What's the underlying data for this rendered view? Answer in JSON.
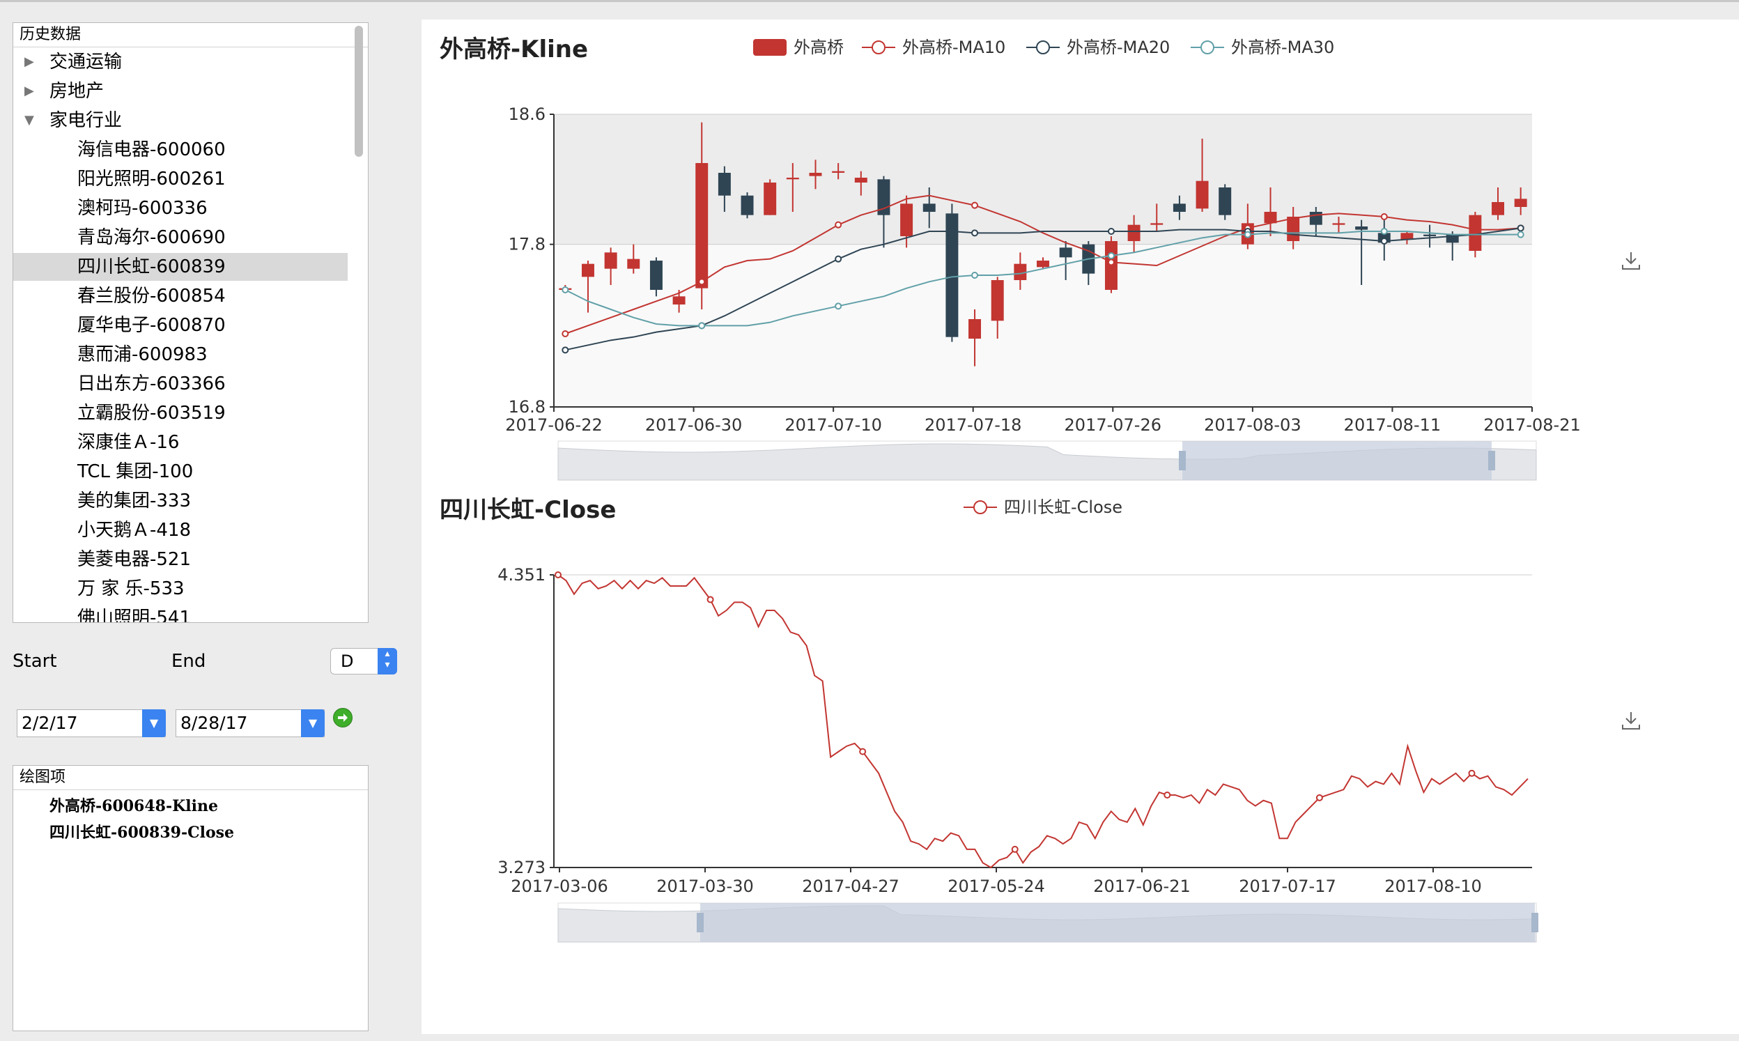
{
  "sidebar": {
    "tree_header": "历史数据",
    "categories": [
      {
        "label": "交通运输",
        "expanded": false
      },
      {
        "label": "房地产",
        "expanded": false
      },
      {
        "label": "家电行业",
        "expanded": true
      }
    ],
    "stocks": [
      {
        "label": "海信电器-600060"
      },
      {
        "label": "阳光照明-600261"
      },
      {
        "label": "澳柯玛-600336"
      },
      {
        "label": "青岛海尔-600690"
      },
      {
        "label": "四川长虹-600839",
        "selected": true
      },
      {
        "label": "春兰股份-600854"
      },
      {
        "label": "厦华电子-600870"
      },
      {
        "label": "惠而浦-600983"
      },
      {
        "label": "日出东方-603366"
      },
      {
        "label": "立霸股份-603519"
      },
      {
        "label": "深康佳Ａ-16"
      },
      {
        "label": "TCL 集团-100"
      },
      {
        "label": "美的集团-333"
      },
      {
        "label": "小天鹅Ａ-418"
      },
      {
        "label": "美菱电器-521"
      },
      {
        "label": "万 家 乐-533"
      },
      {
        "label": "佛山照明-541"
      }
    ],
    "start_label": "Start",
    "end_label": "End",
    "period_select": "D",
    "start_date": "2/2/17",
    "end_date": "8/28/17",
    "plots_header": "绘图项",
    "plot_items": [
      "外高桥-600648-Kline",
      "四川长虹-600839-Close"
    ]
  },
  "colors": {
    "up": "#c23531",
    "down": "#2f4554",
    "ma10": "#c23531",
    "ma20": "#2f4554",
    "ma30": "#61a0a8",
    "close": "#c23531"
  },
  "chart_data": [
    {
      "type": "candlestick",
      "title": "外高桥-Kline",
      "legend": [
        "外高桥",
        "外高桥-MA10",
        "外高桥-MA20",
        "外高桥-MA30"
      ],
      "ylim": [
        16.8,
        18.6
      ],
      "yticks": [
        "18.6",
        "17.8",
        "16.8"
      ],
      "xticks": [
        "2017-06-22",
        "2017-06-30",
        "2017-07-10",
        "2017-07-18",
        "2017-07-26",
        "2017-08-03",
        "2017-08-11",
        "2017-08-21"
      ],
      "candles": [
        [
          17.52,
          17.53,
          17.55,
          17.5
        ],
        [
          17.6,
          17.68,
          17.7,
          17.38
        ],
        [
          17.65,
          17.75,
          17.78,
          17.55
        ],
        [
          17.65,
          17.71,
          17.8,
          17.62
        ],
        [
          17.7,
          17.52,
          17.72,
          17.48
        ],
        [
          17.43,
          17.48,
          17.52,
          17.38
        ],
        [
          17.53,
          18.3,
          18.55,
          17.4
        ],
        [
          18.24,
          18.1,
          18.28,
          18.0
        ],
        [
          18.1,
          17.98,
          18.12,
          17.96
        ],
        [
          17.98,
          18.18,
          18.2,
          17.98
        ],
        [
          18.2,
          18.21,
          18.3,
          18.0
        ],
        [
          18.22,
          18.24,
          18.32,
          18.14
        ],
        [
          18.24,
          18.25,
          18.3,
          18.2
        ],
        [
          18.18,
          18.21,
          18.25,
          18.1
        ],
        [
          18.2,
          17.98,
          18.22,
          17.78
        ],
        [
          17.85,
          18.05,
          18.1,
          17.78
        ],
        [
          18.05,
          18.0,
          18.15,
          17.9
        ],
        [
          17.99,
          17.23,
          18.05,
          17.2
        ],
        [
          17.22,
          17.34,
          17.4,
          17.05
        ],
        [
          17.33,
          17.58,
          17.6,
          17.22
        ],
        [
          17.58,
          17.68,
          17.75,
          17.52
        ],
        [
          17.66,
          17.7,
          17.72,
          17.65
        ],
        [
          17.78,
          17.72,
          17.82,
          17.58
        ],
        [
          17.8,
          17.62,
          17.82,
          17.55
        ],
        [
          17.52,
          17.82,
          17.85,
          17.5
        ],
        [
          17.82,
          17.92,
          17.98,
          17.75
        ],
        [
          17.92,
          17.93,
          18.05,
          17.88
        ],
        [
          18.05,
          18.0,
          18.1,
          17.95
        ],
        [
          18.02,
          18.19,
          18.45,
          18.0
        ],
        [
          18.15,
          17.98,
          18.17,
          17.95
        ],
        [
          17.8,
          17.93,
          18.05,
          17.77
        ],
        [
          17.93,
          18.0,
          18.15,
          17.85
        ],
        [
          17.82,
          17.97,
          18.03,
          17.77
        ],
        [
          18.0,
          17.92,
          18.03,
          17.85
        ],
        [
          17.92,
          17.93,
          17.97,
          17.87
        ],
        [
          17.91,
          17.89,
          17.95,
          17.55
        ],
        [
          17.87,
          17.81,
          17.95,
          17.7
        ],
        [
          17.83,
          17.87,
          17.88,
          17.8
        ],
        [
          17.86,
          17.85,
          17.92,
          17.78
        ],
        [
          17.86,
          17.81,
          17.88,
          17.7
        ],
        [
          17.76,
          17.98,
          18.0,
          17.72
        ],
        [
          17.98,
          18.06,
          18.15,
          17.95
        ],
        [
          18.03,
          18.08,
          18.15,
          17.98
        ]
      ],
      "series": [
        {
          "name": "外高桥-MA10",
          "values": [
            17.25,
            17.3,
            17.35,
            17.4,
            17.45,
            17.5,
            17.57,
            17.66,
            17.7,
            17.71,
            17.76,
            17.84,
            17.92,
            17.98,
            18.02,
            18.08,
            18.1,
            18.07,
            18.04,
            17.99,
            17.94,
            17.87,
            17.81,
            17.76,
            17.69,
            17.68,
            17.67,
            17.73,
            17.79,
            17.85,
            17.9,
            17.93,
            17.96,
            17.98,
            17.99,
            17.98,
            17.97,
            17.95,
            17.94,
            17.92,
            17.89,
            17.89,
            17.9
          ]
        },
        {
          "name": "外高桥-MA20",
          "values": [
            17.15,
            17.18,
            17.21,
            17.23,
            17.26,
            17.28,
            17.3,
            17.36,
            17.43,
            17.5,
            17.57,
            17.64,
            17.71,
            17.77,
            17.8,
            17.84,
            17.88,
            17.88,
            17.87,
            17.87,
            17.87,
            17.88,
            17.88,
            17.88,
            17.88,
            17.88,
            17.88,
            17.89,
            17.89,
            17.89,
            17.88,
            17.88,
            17.86,
            17.85,
            17.84,
            17.83,
            17.82,
            17.83,
            17.84,
            17.85,
            17.86,
            17.88,
            17.9
          ]
        },
        {
          "name": "外高桥-MA30",
          "values": [
            17.52,
            17.45,
            17.4,
            17.35,
            17.31,
            17.3,
            17.3,
            17.3,
            17.3,
            17.32,
            17.36,
            17.39,
            17.42,
            17.45,
            17.48,
            17.53,
            17.57,
            17.6,
            17.61,
            17.61,
            17.62,
            17.65,
            17.68,
            17.71,
            17.73,
            17.75,
            17.78,
            17.81,
            17.84,
            17.86,
            17.86,
            17.87,
            17.87,
            17.87,
            17.87,
            17.88,
            17.88,
            17.88,
            17.87,
            17.86,
            17.86,
            17.86,
            17.86
          ]
        }
      ]
    },
    {
      "type": "line",
      "title": "四川长虹-Close",
      "legend": [
        "四川长虹-Close"
      ],
      "ylim": [
        3.273,
        4.351
      ],
      "yticks": [
        "4.351",
        "3.273"
      ],
      "xticks": [
        "2017-03-06",
        "2017-03-30",
        "2017-04-27",
        "2017-05-24",
        "2017-06-21",
        "2017-07-17",
        "2017-08-10"
      ],
      "values": [
        4.351,
        4.33,
        4.28,
        4.32,
        4.33,
        4.3,
        4.31,
        4.33,
        4.3,
        4.33,
        4.3,
        4.33,
        4.32,
        4.34,
        4.31,
        4.31,
        4.31,
        4.34,
        4.3,
        4.26,
        4.2,
        4.22,
        4.25,
        4.25,
        4.23,
        4.16,
        4.22,
        4.22,
        4.19,
        4.14,
        4.13,
        4.09,
        3.98,
        3.96,
        3.68,
        3.7,
        3.72,
        3.73,
        3.7,
        3.66,
        3.62,
        3.55,
        3.48,
        3.44,
        3.37,
        3.36,
        3.34,
        3.38,
        3.37,
        3.4,
        3.39,
        3.34,
        3.34,
        3.29,
        3.273,
        3.3,
        3.31,
        3.34,
        3.29,
        3.33,
        3.35,
        3.39,
        3.38,
        3.36,
        3.38,
        3.44,
        3.43,
        3.38,
        3.44,
        3.48,
        3.45,
        3.44,
        3.49,
        3.43,
        3.5,
        3.55,
        3.54,
        3.54,
        3.53,
        3.54,
        3.51,
        3.56,
        3.54,
        3.58,
        3.57,
        3.56,
        3.52,
        3.5,
        3.52,
        3.51,
        3.38,
        3.38,
        3.44,
        3.47,
        3.5,
        3.53,
        3.54,
        3.55,
        3.56,
        3.61,
        3.6,
        3.57,
        3.59,
        3.58,
        3.62,
        3.58,
        3.72,
        3.63,
        3.55,
        3.6,
        3.58,
        3.6,
        3.62,
        3.59,
        3.62,
        3.6,
        3.61,
        3.57,
        3.56,
        3.54,
        3.57,
        3.6
      ]
    }
  ]
}
